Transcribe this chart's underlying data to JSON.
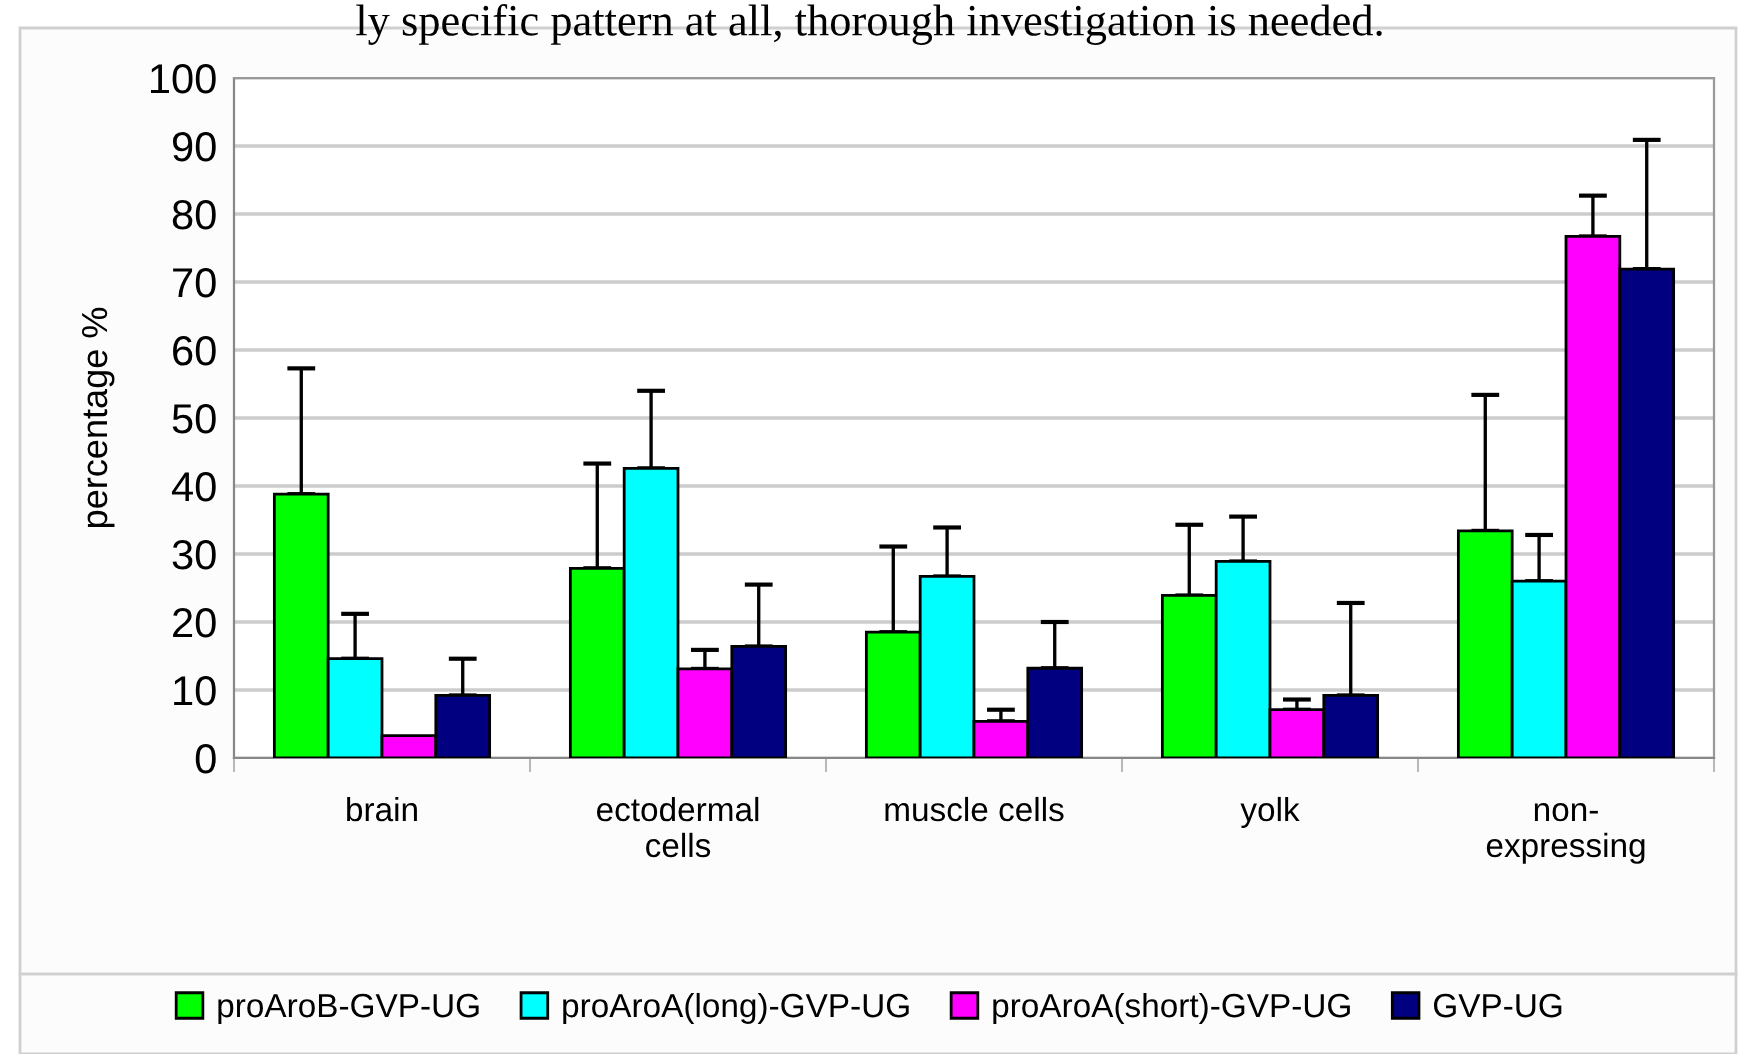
{
  "chart_data": {
    "type": "bar",
    "ylabel": "percentage %",
    "annotations": [
      "ly specific pattern at all, thorough investigation is needed."
    ],
    "categories": [
      "brain",
      "ectodermal\ncells",
      "muscle cells",
      "yolk",
      "non-\nexpressing"
    ],
    "series": [
      {
        "name": "proAroB-GVP-UG",
        "color": "#00ff00",
        "values": [
          38.8,
          27.9,
          18.5,
          23.9,
          33.4
        ],
        "errors": [
          [
            38.8,
            57.3
          ],
          [
            27.9,
            43.3
          ],
          [
            18.5,
            31.1
          ],
          [
            23.9,
            34.3
          ],
          [
            33.4,
            53.4
          ]
        ]
      },
      {
        "name": "proAroA(long)-GVP-UG",
        "color": "#00ffff",
        "values": [
          14.6,
          42.6,
          26.7,
          28.9,
          26.0
        ],
        "errors": [
          [
            14.6,
            21.2
          ],
          [
            42.6,
            54.0
          ],
          [
            26.7,
            33.9
          ],
          [
            28.9,
            35.5
          ],
          [
            26.0,
            32.8
          ]
        ]
      },
      {
        "name": "proAroA(short)-GVP-UG",
        "color": "#ff00ff",
        "values": [
          3.3,
          13.1,
          5.4,
          7.1,
          76.7
        ],
        "errors": [
          null,
          [
            13.1,
            15.9
          ],
          [
            5.4,
            7.1
          ],
          [
            7.1,
            8.6
          ],
          [
            76.7,
            82.7
          ]
        ]
      },
      {
        "name": "GVP-UG",
        "color": "#000080",
        "values": [
          9.2,
          16.4,
          13.2,
          9.2,
          71.9
        ],
        "errors": [
          [
            9.2,
            14.6
          ],
          [
            16.4,
            25.5
          ],
          [
            13.2,
            20.0
          ],
          [
            9.2,
            22.8
          ],
          [
            71.9,
            90.9
          ]
        ]
      }
    ],
    "ylim": [
      0,
      100
    ],
    "yticks": [
      0,
      10,
      20,
      30,
      40,
      50,
      60,
      70,
      80,
      90,
      100
    ],
    "grid": "y",
    "legend": "bottom"
  }
}
